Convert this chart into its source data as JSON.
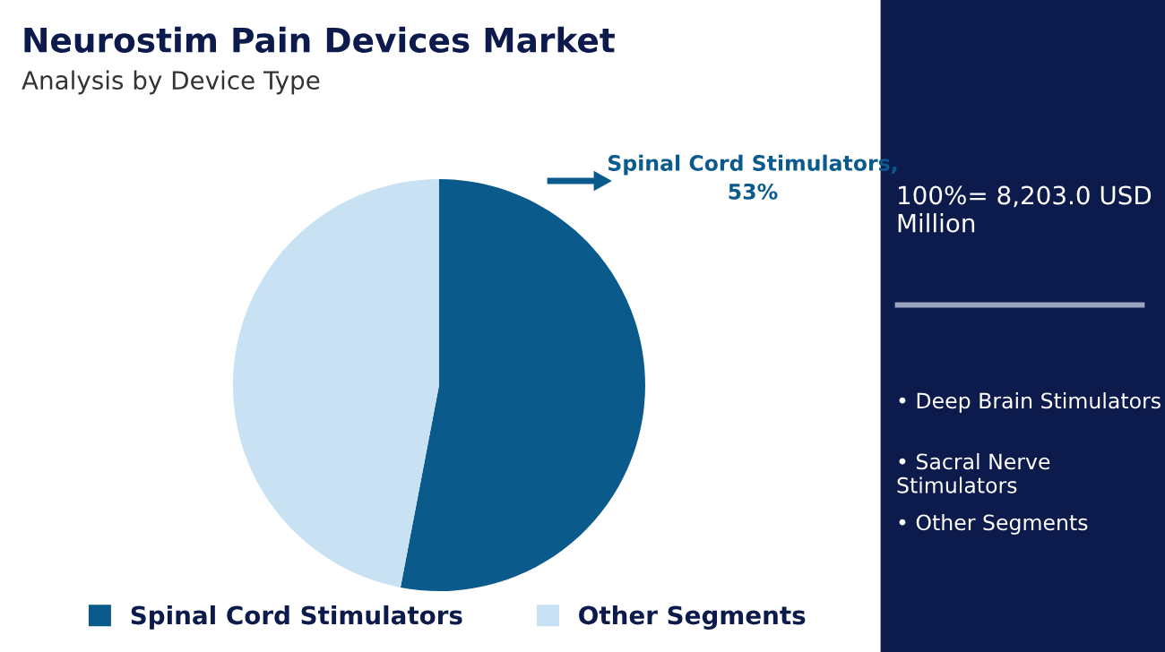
{
  "chart_data": {
    "type": "pie",
    "title": "Neurostim Pain Devices Market",
    "subtitle": "Analysis by Device Type",
    "categories": [
      "Spinal Cord Stimulators",
      "Other Segments"
    ],
    "values": [
      53,
      47
    ],
    "colors": [
      "#0a5a8c",
      "#c8e2f3"
    ],
    "value_labels": [
      "Spinal Cord Stimulators, 53%",
      null
    ],
    "legend": "bottom",
    "annotations": [
      "100%= 8,203.0 USD Million",
      "• Deep Brain Stimulators",
      "• Sacral Nerve Stimulators",
      "• Other Segments"
    ]
  }
}
